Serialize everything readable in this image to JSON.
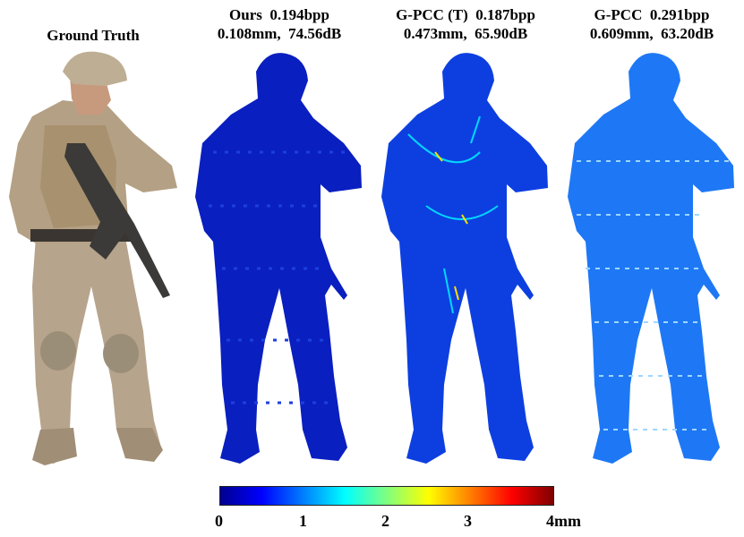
{
  "panels": [
    {
      "id": "ground-truth",
      "caption_lines": [
        "Ground Truth"
      ]
    },
    {
      "id": "ours",
      "caption_lines": [
        "Ours  0.194bpp",
        "0.108mm,  74.56dB"
      ]
    },
    {
      "id": "gpcc-t",
      "caption_lines": [
        "G-PCC (T)  0.187bpp",
        "0.473mm,  65.90dB"
      ]
    },
    {
      "id": "gpcc",
      "caption_lines": [
        "G-PCC  0.291bpp",
        "0.609mm,  63.20dB"
      ]
    }
  ],
  "colorbar": {
    "ticks": [
      "0",
      "1",
      "2",
      "3",
      "4mm"
    ],
    "colors": [
      "#00008f",
      "#0000ff",
      "#007fff",
      "#00ffff",
      "#7fff7f",
      "#ffff00",
      "#ff7f00",
      "#ff0000",
      "#7f0000"
    ]
  },
  "colors": {
    "heat_ours": "#0a1fbf",
    "heat_gpcc_t": "#0d3fe0",
    "heat_gpcc": "#1e78f5",
    "camo": "#b8a58d"
  }
}
